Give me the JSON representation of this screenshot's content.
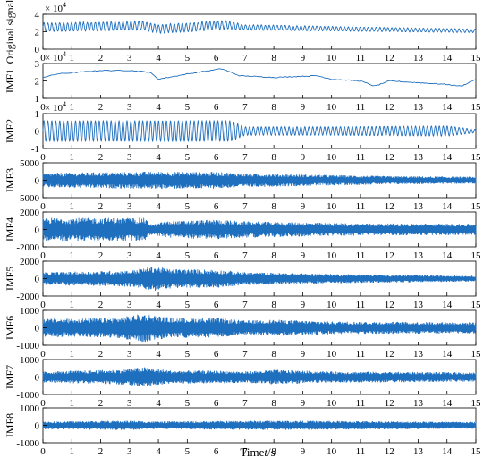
{
  "chart_data": {
    "type": "line",
    "xlabel_pre": "Time",
    "xlabel_italic": "t",
    "xlabel_post": "/s",
    "x_ticks": [
      0,
      1,
      2,
      3,
      4,
      5,
      6,
      7,
      8,
      9,
      10,
      11,
      12,
      13,
      14,
      15
    ],
    "xlim": [
      0,
      15
    ],
    "color": "#1f6fbf",
    "panels": [
      {
        "name": "original-signal",
        "ylabel": "Original signal",
        "multiplier": "× 10",
        "exponent": "4",
        "ylim": [
          0,
          4
        ],
        "yticks": [
          "0",
          "2",
          "4"
        ],
        "ytick_values": [
          0,
          2,
          4
        ],
        "model": "original",
        "envelope": {
          "t": [
            0,
            3.5,
            4,
            6.3,
            7,
            15
          ],
          "center": [
            2.5,
            2.7,
            2.3,
            2.8,
            2.5,
            2.1
          ],
          "amp": [
            0.5,
            0.5,
            0.5,
            0.5,
            0.3,
            0.2
          ]
        }
      },
      {
        "name": "imf1",
        "ylabel": "IMF1",
        "multiplier": "× 10",
        "exponent": "4",
        "ylim": [
          1,
          3
        ],
        "yticks": [
          "1",
          "2",
          "3"
        ],
        "ytick_values": [
          1,
          2,
          3
        ],
        "model": "trend",
        "trend": {
          "t": [
            0,
            0.5,
            2,
            3,
            3.7,
            4,
            5,
            6.2,
            6.8,
            8,
            9.5,
            10,
            11,
            11.5,
            12,
            13,
            14,
            14.5,
            15
          ],
          "v": [
            2.2,
            2.4,
            2.6,
            2.6,
            2.5,
            2.1,
            2.4,
            2.7,
            2.3,
            2.2,
            2.3,
            2.1,
            2.0,
            1.7,
            2.0,
            1.9,
            1.8,
            1.7,
            2.1
          ]
        }
      },
      {
        "name": "imf2",
        "ylabel": "IMF2",
        "multiplier": "× 10",
        "exponent": "4",
        "ylim": [
          -1,
          1
        ],
        "yticks": [
          "-1",
          "0",
          "1"
        ],
        "ytick_values": [
          -1,
          0,
          1
        ],
        "model": "oscillation",
        "envelope": {
          "t": [
            0,
            6.5,
            7,
            10,
            14,
            15
          ],
          "amp": [
            0.6,
            0.6,
            0.25,
            0.25,
            0.3,
            0.1
          ]
        }
      },
      {
        "name": "imf3",
        "ylabel": "IMF3",
        "ylim": [
          -5000,
          5000
        ],
        "yticks": [
          "-5000",
          "0",
          "5000"
        ],
        "ytick_values": [
          -5000,
          0,
          5000
        ],
        "model": "noise",
        "envelope": {
          "t": [
            0,
            2,
            4,
            6,
            7,
            10,
            12,
            15
          ],
          "amp": [
            2000,
            2200,
            2400,
            2300,
            1900,
            1400,
            1100,
            900
          ]
        }
      },
      {
        "name": "imf4",
        "ylabel": "IMF4",
        "ylim": [
          -2000,
          2000
        ],
        "yticks": [
          "-2000",
          "0",
          "2000"
        ],
        "ytick_values": [
          -2000,
          0,
          2000
        ],
        "model": "noise",
        "envelope": {
          "t": [
            0,
            3.5,
            3.8,
            4.2,
            6,
            7,
            10,
            12,
            15
          ],
          "amp": [
            1300,
            1300,
            500,
            900,
            1100,
            900,
            700,
            650,
            600
          ]
        }
      },
      {
        "name": "imf5",
        "ylabel": "IMF5",
        "ylim": [
          -2000,
          2000
        ],
        "yticks": [
          "-2000",
          "0",
          "2000"
        ],
        "ytick_values": [
          -2000,
          0,
          2000
        ],
        "model": "noise",
        "envelope": {
          "t": [
            0,
            3,
            3.9,
            4.3,
            6,
            7,
            10,
            15
          ],
          "amp": [
            700,
            900,
            1400,
            1100,
            1000,
            700,
            500,
            300
          ]
        }
      },
      {
        "name": "imf6",
        "ylabel": "IMF6",
        "ylim": [
          -1000,
          1000
        ],
        "yticks": [
          "-1000",
          "0",
          "1000"
        ],
        "ytick_values": [
          -1000,
          0,
          1000
        ],
        "model": "noise",
        "envelope": {
          "t": [
            0,
            2.5,
            3.5,
            4.5,
            6,
            7,
            8,
            10,
            15
          ],
          "amp": [
            500,
            550,
            800,
            550,
            550,
            400,
            450,
            350,
            300
          ]
        }
      },
      {
        "name": "imf7",
        "ylabel": "IMF7",
        "ylim": [
          -1000,
          1000
        ],
        "yticks": [
          "-1000",
          "0",
          "1000"
        ],
        "ytick_values": [
          -1000,
          0,
          1000
        ],
        "model": "noise",
        "envelope": {
          "t": [
            0,
            2.5,
            3.5,
            4.5,
            6,
            7,
            8,
            10,
            15
          ],
          "amp": [
            300,
            400,
            550,
            350,
            350,
            300,
            400,
            300,
            250
          ]
        }
      },
      {
        "name": "imf8",
        "ylabel": "IMF8",
        "ylim": [
          -1000,
          1000
        ],
        "yticks": [
          "-1000",
          "0",
          "1000"
        ],
        "ytick_values": [
          -1000,
          0,
          1000
        ],
        "model": "noise",
        "envelope": {
          "t": [
            0,
            3,
            4,
            8,
            15
          ],
          "amp": [
            200,
            250,
            200,
            250,
            180
          ]
        }
      }
    ]
  }
}
